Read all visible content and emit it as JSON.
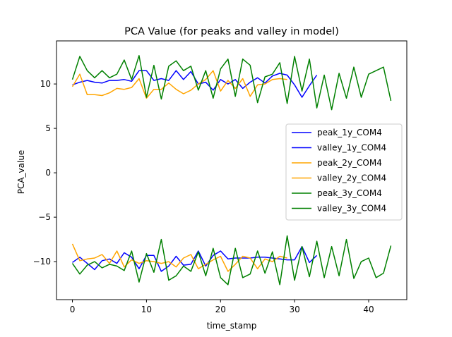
{
  "chart_data": {
    "type": "line",
    "title": "PCA Value (for peaks and valley in model)",
    "xlabel": "time_stamp",
    "ylabel": "PCA_value",
    "xlim": [
      -2.15,
      45.15
    ],
    "ylim": [
      -14.28,
      14.85
    ],
    "xticks": [
      0,
      10,
      20,
      30,
      40
    ],
    "yticks": [
      -10,
      -5,
      0,
      5,
      10
    ],
    "ytick_labels": [
      "−10",
      "−5",
      "0",
      "5",
      "10"
    ],
    "grid": false,
    "legend_position": "center-right",
    "series": [
      {
        "name": "peak_1y_COM4",
        "color": "#0000ff",
        "x": [
          0,
          1,
          2,
          3,
          4,
          5,
          6,
          7,
          8,
          9,
          10,
          11,
          12,
          13,
          14,
          15,
          16,
          17,
          18,
          19,
          20,
          21,
          22,
          23,
          24,
          25,
          26,
          27,
          28,
          29,
          30,
          31,
          32,
          33
        ],
        "y": [
          9.9,
          10.2,
          10.4,
          10.2,
          10.1,
          10.4,
          10.4,
          10.5,
          10.3,
          11.5,
          11.5,
          10.4,
          10.6,
          10.4,
          11.5,
          10.5,
          11.4,
          10.0,
          10.2,
          9.3,
          10.5,
          10.0,
          10.5,
          9.5,
          10.2,
          10.7,
          10.1,
          10.9,
          11.2,
          11.0,
          9.9,
          8.5,
          9.8,
          11.0
        ]
      },
      {
        "name": "valley_1y_COM4",
        "color": "#0000ff",
        "x": [
          0,
          1,
          2,
          3,
          4,
          5,
          6,
          7,
          8,
          9,
          10,
          11,
          12,
          13,
          14,
          15,
          16,
          17,
          18,
          19,
          20,
          21,
          22,
          23,
          24,
          25,
          26,
          27,
          28,
          29,
          30,
          31,
          32,
          33
        ],
        "y": [
          -10.1,
          -9.5,
          -10.2,
          -10.9,
          -9.9,
          -9.7,
          -10.2,
          -9.0,
          -9.5,
          -10.8,
          -9.3,
          -9.3,
          -11.1,
          -10.5,
          -9.4,
          -10.4,
          -10.3,
          -8.8,
          -10.5,
          -9.3,
          -8.8,
          -9.7,
          -9.6,
          -9.6,
          -9.6,
          -9.5,
          -9.5,
          -9.6,
          -9.7,
          -9.8,
          -9.8,
          -8.3,
          -10.1,
          -9.3
        ]
      },
      {
        "name": "peak_2y_COM4",
        "color": "#ffa500",
        "x": [
          0,
          1,
          2,
          3,
          4,
          5,
          6,
          7,
          8,
          9,
          10,
          11,
          12,
          13,
          14,
          15,
          16,
          17,
          18,
          19,
          20,
          21,
          22,
          23,
          24,
          25,
          26,
          27,
          28,
          29
        ],
        "y": [
          9.7,
          11.1,
          8.8,
          8.8,
          8.7,
          9.0,
          9.5,
          9.4,
          9.6,
          10.6,
          8.4,
          9.4,
          9.4,
          10.1,
          9.4,
          8.9,
          9.3,
          10.0,
          10.5,
          11.5,
          9.2,
          10.4,
          9.5,
          10.6,
          8.6,
          9.9,
          10.0,
          10.5,
          10.6,
          10.5
        ]
      },
      {
        "name": "valley_2y_COM4",
        "color": "#ffa500",
        "x": [
          0,
          1,
          2,
          3,
          4,
          5,
          6,
          7,
          8,
          9,
          10,
          11,
          12,
          13,
          14,
          15,
          16,
          17,
          18,
          19,
          20,
          21,
          22,
          23,
          24,
          25,
          26,
          27,
          28,
          29
        ],
        "y": [
          -8.0,
          -9.9,
          -9.7,
          -9.6,
          -9.2,
          -10.2,
          -8.8,
          -10.6,
          -9.8,
          -10.2,
          -9.9,
          -10.0,
          -10.2,
          -10.0,
          -10.6,
          -9.6,
          -9.2,
          -10.8,
          -10.3,
          -9.8,
          -9.4,
          -11.1,
          -10.3,
          -9.4,
          -9.6,
          -10.8,
          -9.7,
          -10.0,
          -9.4,
          -9.6
        ]
      },
      {
        "name": "peak_3y_COM4",
        "color": "#008000",
        "x": [
          0,
          1,
          2,
          3,
          4,
          5,
          6,
          7,
          8,
          9,
          10,
          11,
          12,
          13,
          14,
          15,
          16,
          17,
          18,
          19,
          20,
          21,
          22,
          23,
          24,
          25,
          26,
          27,
          28,
          29,
          30,
          31,
          32,
          33,
          34,
          35,
          36,
          37,
          38,
          39,
          40,
          41,
          42,
          43
        ],
        "y": [
          10.5,
          13.1,
          11.5,
          10.7,
          11.5,
          10.7,
          11.1,
          12.7,
          10.5,
          13.2,
          8.5,
          12.1,
          8.3,
          12.0,
          12.6,
          11.5,
          12.0,
          9.3,
          11.5,
          8.4,
          11.7,
          12.8,
          8.6,
          12.8,
          12.1,
          7.9,
          10.8,
          11.1,
          12.4,
          7.8,
          13.1,
          9.2,
          12.8,
          7.3,
          11.0,
          7.1,
          11.2,
          8.4,
          11.9,
          8.5,
          11.1,
          11.5,
          11.9,
          8.1
        ]
      },
      {
        "name": "valley_3y_COM4",
        "color": "#008000",
        "x": [
          0,
          1,
          2,
          3,
          4,
          5,
          6,
          7,
          8,
          9,
          10,
          11,
          12,
          13,
          14,
          15,
          16,
          17,
          18,
          19,
          20,
          21,
          22,
          23,
          24,
          25,
          26,
          27,
          28,
          29,
          30,
          31,
          32,
          33,
          34,
          35,
          36,
          37,
          38,
          39,
          40,
          41,
          42,
          43
        ],
        "y": [
          -10.2,
          -11.4,
          -10.4,
          -10.0,
          -10.7,
          -10.3,
          -10.5,
          -11.0,
          -8.8,
          -12.3,
          -9.1,
          -11.2,
          -7.5,
          -12.1,
          -11.6,
          -10.5,
          -11.1,
          -8.9,
          -11.6,
          -8.5,
          -11.8,
          -12.6,
          -8.5,
          -11.8,
          -11.4,
          -8.8,
          -11.3,
          -8.9,
          -12.6,
          -7.1,
          -12.1,
          -8.3,
          -11.7,
          -7.7,
          -11.8,
          -8.3,
          -11.6,
          -7.5,
          -11.9,
          -10.0,
          -9.6,
          -11.8,
          -11.3,
          -8.2
        ]
      }
    ]
  }
}
